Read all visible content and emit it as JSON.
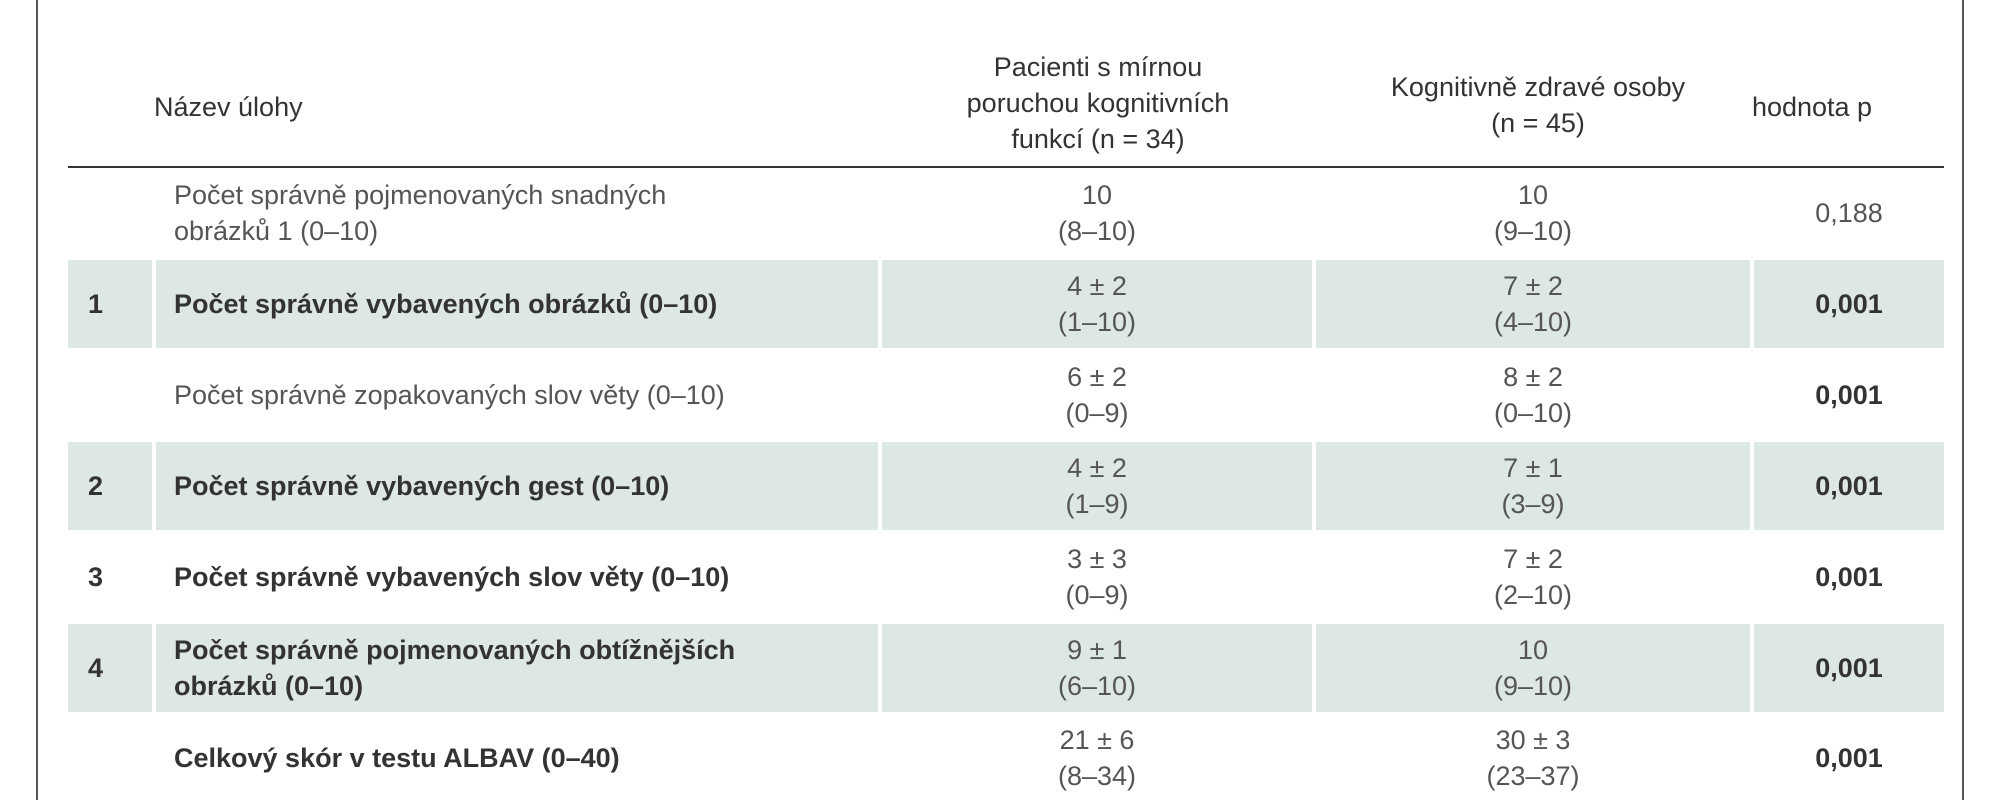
{
  "header": {
    "task": "Název úlohy",
    "mci": "Pacienti s mírnou\nporuchou kognitivních\nfunkcí (n = 34)",
    "healthy": "Kognitivně zdravé osoby\n(n = 45)",
    "p_value": "hodnota p"
  },
  "rows": [
    {
      "num": "",
      "task": "Počet správně pojmenovaných snadných\nobrázků 1 (0–10)",
      "mci_main": "10",
      "mci_range": "(8–10)",
      "healthy_main": "10",
      "healthy_range": "(9–10)",
      "p": "0,188"
    },
    {
      "num": "1",
      "task": "Počet správně vybavených obrázků (0–10)",
      "mci_main": "4 ± 2",
      "mci_range": "(1–10)",
      "healthy_main": "7 ± 2",
      "healthy_range": "(4–10)",
      "p": "0,001"
    },
    {
      "num": "",
      "task": "Počet správně zopakovaných slov věty (0–10)",
      "mci_main": "6 ± 2",
      "mci_range": "(0–9)",
      "healthy_main": "8 ± 2",
      "healthy_range": "(0–10)",
      "p": "0,001"
    },
    {
      "num": "2",
      "task": "Počet správně vybavených gest (0–10)",
      "mci_main": "4 ± 2",
      "mci_range": "(1–9)",
      "healthy_main": "7 ± 1",
      "healthy_range": "(3–9)",
      "p": "0,001"
    },
    {
      "num": "3",
      "task": "Počet správně vybavených slov věty (0–10)",
      "mci_main": "3 ± 3",
      "mci_range": "(0–9)",
      "healthy_main": "7 ± 2",
      "healthy_range": "(2–10)",
      "p": "0,001"
    },
    {
      "num": "4",
      "task": "Počet správně pojmenovaných obtížnějších\nobrázků (0–10)",
      "mci_main": "9 ± 1",
      "mci_range": "(6–10)",
      "healthy_main": "10",
      "healthy_range": "(9–10)",
      "p": "0,001"
    },
    {
      "num": "",
      "task": "Celkový skór v testu ALBAV (0–40)",
      "mci_main": "21 ± 6",
      "mci_range": "(8–34)",
      "healthy_main": "30 ± 3",
      "healthy_range": "(23–37)",
      "p": "0,001"
    }
  ]
}
